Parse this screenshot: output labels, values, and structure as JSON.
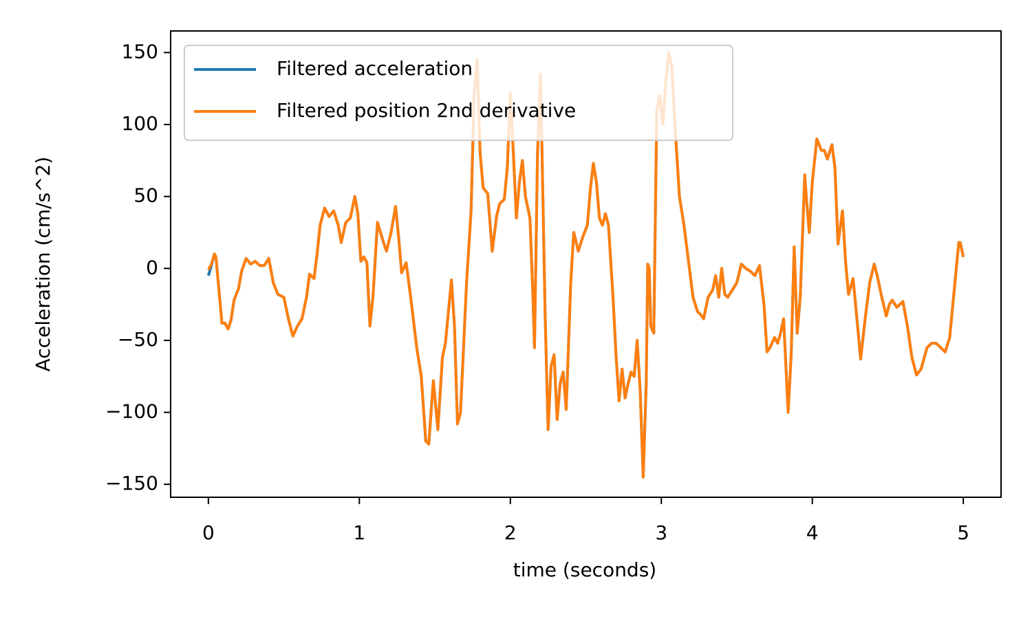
{
  "chart_data": {
    "type": "line",
    "xlabel": "time (seconds)",
    "ylabel": "Acceleration (cm/s^2)",
    "x": [
      0.0,
      0.02,
      0.04,
      0.05,
      0.07,
      0.09,
      0.11,
      0.13,
      0.15,
      0.17,
      0.2,
      0.22,
      0.25,
      0.28,
      0.31,
      0.34,
      0.37,
      0.4,
      0.43,
      0.46,
      0.5,
      0.53,
      0.56,
      0.59,
      0.62,
      0.65,
      0.67,
      0.7,
      0.72,
      0.74,
      0.77,
      0.8,
      0.83,
      0.86,
      0.88,
      0.91,
      0.94,
      0.97,
      0.99,
      1.01,
      1.03,
      1.05,
      1.07,
      1.09,
      1.12,
      1.14,
      1.16,
      1.18,
      1.21,
      1.24,
      1.26,
      1.28,
      1.31,
      1.34,
      1.38,
      1.41,
      1.44,
      1.46,
      1.49,
      1.52,
      1.55,
      1.57,
      1.61,
      1.63,
      1.65,
      1.67,
      1.71,
      1.74,
      1.76,
      1.78,
      1.8,
      1.82,
      1.85,
      1.88,
      1.91,
      1.93,
      1.96,
      1.98,
      2.0,
      2.02,
      2.04,
      2.06,
      2.08,
      2.1,
      2.13,
      2.15,
      2.16,
      2.18,
      2.2,
      2.21,
      2.23,
      2.25,
      2.27,
      2.29,
      2.31,
      2.33,
      2.35,
      2.37,
      2.4,
      2.42,
      2.45,
      2.48,
      2.51,
      2.53,
      2.55,
      2.57,
      2.59,
      2.61,
      2.63,
      2.65,
      2.68,
      2.7,
      2.72,
      2.74,
      2.76,
      2.78,
      2.8,
      2.82,
      2.84,
      2.86,
      2.88,
      2.9,
      2.91,
      2.92,
      2.93,
      2.95,
      2.97,
      2.99,
      3.01,
      3.03,
      3.05,
      3.07,
      3.09,
      3.12,
      3.15,
      3.18,
      3.21,
      3.24,
      3.26,
      3.28,
      3.31,
      3.34,
      3.36,
      3.38,
      3.4,
      3.42,
      3.44,
      3.47,
      3.5,
      3.53,
      3.56,
      3.59,
      3.62,
      3.65,
      3.68,
      3.7,
      3.72,
      3.75,
      3.77,
      3.79,
      3.81,
      3.84,
      3.86,
      3.88,
      3.9,
      3.92,
      3.95,
      3.96,
      3.98,
      4.0,
      4.03,
      4.06,
      4.08,
      4.1,
      4.13,
      4.15,
      4.17,
      4.2,
      4.22,
      4.24,
      4.27,
      4.3,
      4.32,
      4.35,
      4.38,
      4.41,
      4.43,
      4.46,
      4.49,
      4.51,
      4.53,
      4.56,
      4.6,
      4.63,
      4.66,
      4.69,
      4.72,
      4.76,
      4.79,
      4.82,
      4.85,
      4.88,
      4.91,
      4.94,
      4.97,
      4.98,
      5.0
    ],
    "series": [
      {
        "name": "Filtered acceleration",
        "color": "#1f77b4",
        "values": [
          -5,
          2,
          10,
          8,
          -15,
          -38,
          -38,
          -42,
          -36,
          -22,
          -14,
          -2,
          7,
          3,
          5,
          2,
          2,
          7,
          -10,
          -18,
          -20,
          -35,
          -47,
          -40,
          -35,
          -20,
          -4,
          -7,
          10,
          30,
          42,
          36,
          40,
          30,
          18,
          32,
          35,
          50,
          38,
          5,
          8,
          4,
          -40,
          -20,
          32,
          25,
          18,
          12,
          25,
          43,
          22,
          -3,
          4,
          -20,
          -55,
          -75,
          -120,
          -122,
          -78,
          -112,
          -62,
          -52,
          -8,
          -40,
          -108,
          -100,
          -10,
          40,
          120,
          145,
          80,
          56,
          52,
          12,
          37,
          45,
          48,
          70,
          122,
          80,
          35,
          60,
          75,
          50,
          35,
          -20,
          -55,
          80,
          135,
          80,
          -30,
          -112,
          -68,
          -60,
          -105,
          -80,
          -72,
          -98,
          -10,
          25,
          12,
          22,
          30,
          55,
          73,
          60,
          35,
          30,
          38,
          30,
          -20,
          -60,
          -92,
          -70,
          -90,
          -80,
          -72,
          -75,
          -50,
          -85,
          -145,
          -80,
          3,
          0,
          -40,
          -45,
          110,
          120,
          100,
          130,
          150,
          140,
          100,
          50,
          30,
          5,
          -20,
          -30,
          -32,
          -35,
          -20,
          -15,
          -5,
          -20,
          0,
          -18,
          -20,
          -15,
          -10,
          3,
          0,
          -2,
          -5,
          2,
          -25,
          -58,
          -55,
          -48,
          -52,
          -45,
          -35,
          -100,
          -60,
          15,
          -45,
          -20,
          65,
          50,
          25,
          60,
          90,
          82,
          82,
          76,
          86,
          70,
          17,
          40,
          5,
          -18,
          -7,
          -40,
          -63,
          -35,
          -10,
          3,
          -5,
          -20,
          -33,
          -25,
          -22,
          -27,
          -23,
          -40,
          -62,
          -74,
          -70,
          -55,
          -52,
          -52,
          -55,
          -58,
          -48,
          -15,
          18,
          18,
          8
        ]
      },
      {
        "name": "Filtered position 2nd derivative",
        "color": "#ff7f0e",
        "values": [
          -1,
          3,
          10,
          8,
          -15,
          -38,
          -38,
          -42,
          -36,
          -22,
          -14,
          -2,
          7,
          3,
          5,
          2,
          2,
          7,
          -10,
          -18,
          -20,
          -35,
          -47,
          -40,
          -35,
          -20,
          -4,
          -7,
          10,
          30,
          42,
          36,
          40,
          30,
          18,
          32,
          35,
          50,
          38,
          5,
          8,
          4,
          -40,
          -20,
          32,
          25,
          18,
          12,
          25,
          43,
          22,
          -3,
          4,
          -20,
          -55,
          -75,
          -120,
          -122,
          -78,
          -112,
          -62,
          -52,
          -8,
          -40,
          -108,
          -100,
          -10,
          40,
          120,
          145,
          80,
          56,
          52,
          12,
          37,
          45,
          48,
          70,
          122,
          80,
          35,
          60,
          75,
          50,
          35,
          -20,
          -55,
          80,
          135,
          80,
          -30,
          -112,
          -68,
          -60,
          -105,
          -80,
          -72,
          -98,
          -10,
          25,
          12,
          22,
          30,
          55,
          73,
          60,
          35,
          30,
          38,
          30,
          -20,
          -60,
          -92,
          -70,
          -90,
          -80,
          -72,
          -75,
          -50,
          -85,
          -145,
          -80,
          3,
          0,
          -40,
          -45,
          110,
          120,
          100,
          130,
          150,
          140,
          100,
          50,
          30,
          5,
          -20,
          -30,
          -32,
          -35,
          -20,
          -15,
          -5,
          -20,
          0,
          -18,
          -20,
          -15,
          -10,
          3,
          0,
          -2,
          -5,
          2,
          -25,
          -58,
          -55,
          -48,
          -52,
          -45,
          -35,
          -100,
          -60,
          15,
          -45,
          -20,
          65,
          50,
          25,
          60,
          90,
          82,
          82,
          76,
          86,
          70,
          17,
          40,
          5,
          -18,
          -7,
          -40,
          -63,
          -35,
          -10,
          3,
          -5,
          -20,
          -33,
          -25,
          -22,
          -27,
          -23,
          -40,
          -62,
          -74,
          -70,
          -55,
          -52,
          -52,
          -55,
          -58,
          -48,
          -15,
          18,
          18,
          8
        ]
      }
    ],
    "xlim": [
      -0.25,
      5.25
    ],
    "ylim": [
      -159,
      165
    ],
    "xticks": [
      0,
      1,
      2,
      3,
      4,
      5
    ],
    "yticks": [
      {
        "value": -150,
        "label": "−150"
      },
      {
        "value": -100,
        "label": "−100"
      },
      {
        "value": -50,
        "label": "−50"
      },
      0,
      50,
      100,
      150
    ],
    "legend": "upper left",
    "grid": false
  }
}
